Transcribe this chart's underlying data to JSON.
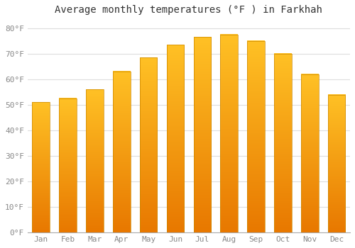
{
  "title": "Average monthly temperatures (°F ) in Farkhah",
  "months": [
    "Jan",
    "Feb",
    "Mar",
    "Apr",
    "May",
    "Jun",
    "Jul",
    "Aug",
    "Sep",
    "Oct",
    "Nov",
    "Dec"
  ],
  "values": [
    51,
    52.5,
    56,
    63,
    68.5,
    73.5,
    76.5,
    77.5,
    75,
    70,
    62,
    54
  ],
  "bar_color_bright": "#FFC125",
  "bar_color_dark": "#E87800",
  "background_color": "#FFFFFF",
  "grid_color": "#DDDDDD",
  "yticks": [
    0,
    10,
    20,
    30,
    40,
    50,
    60,
    70,
    80
  ],
  "ylim": [
    0,
    83
  ],
  "title_fontsize": 10,
  "tick_fontsize": 8,
  "figsize": [
    5.0,
    3.5
  ],
  "dpi": 100
}
